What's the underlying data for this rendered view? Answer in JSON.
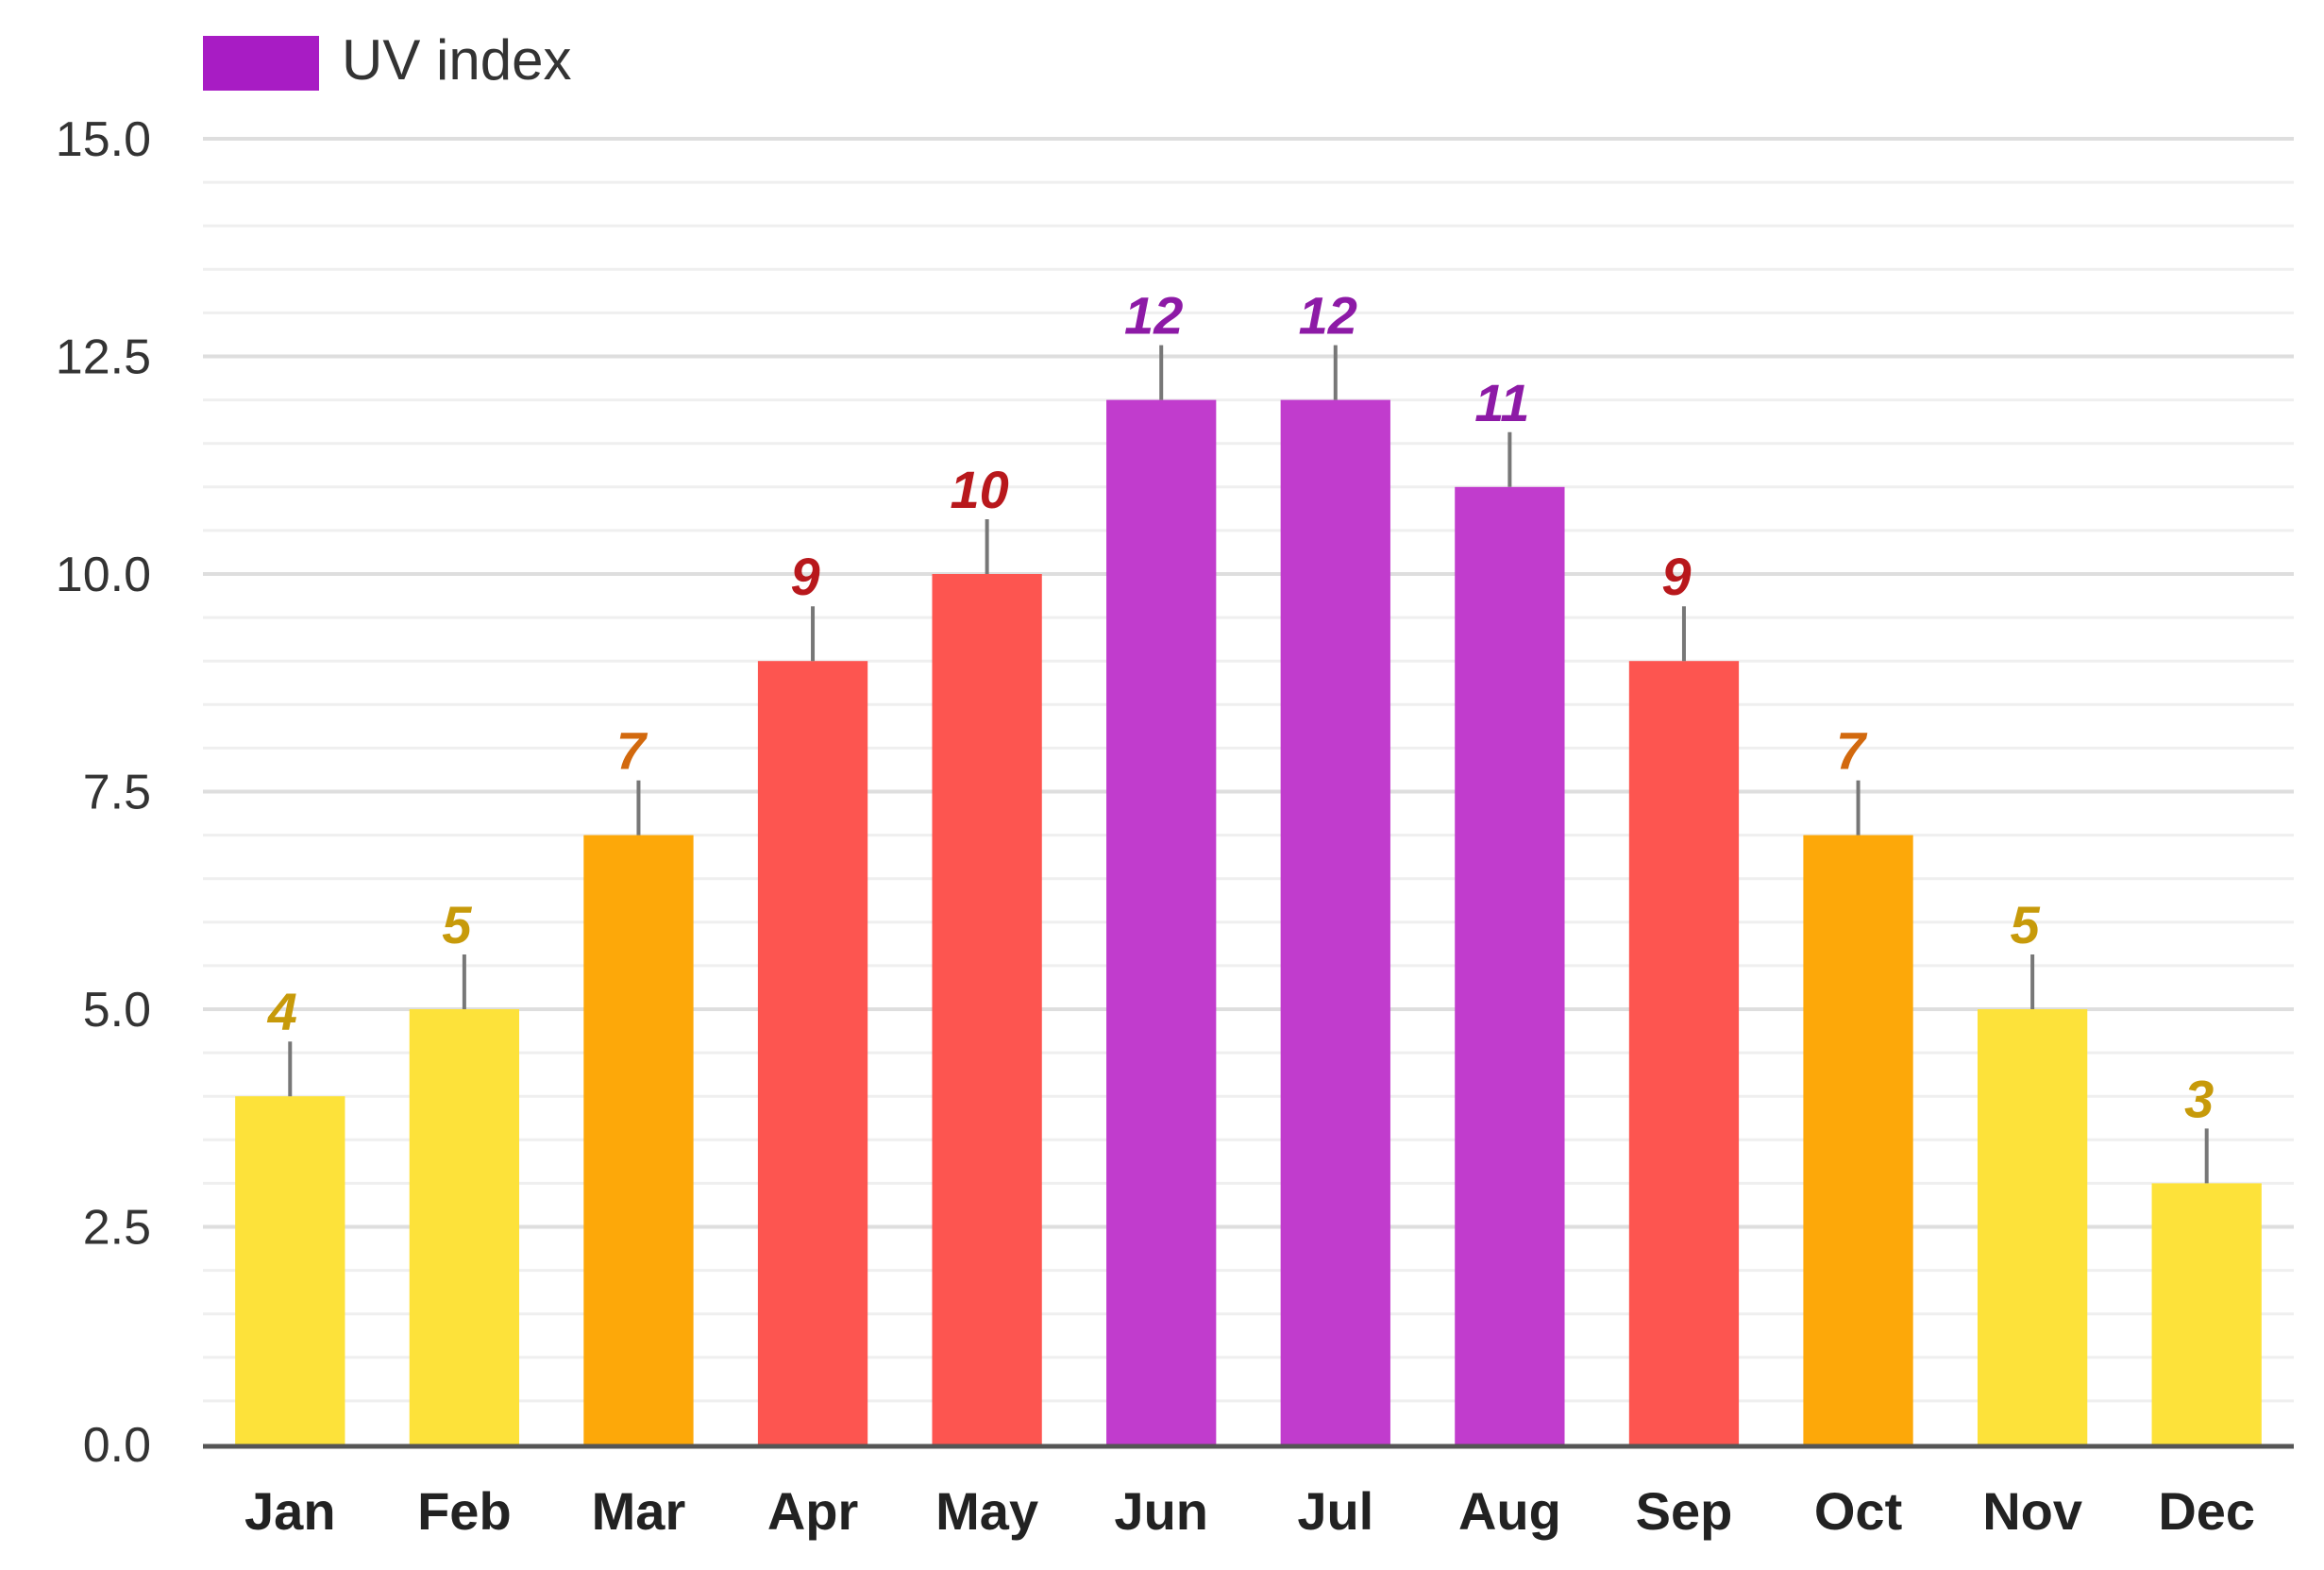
{
  "legend": {
    "label": "UV index",
    "color": "#a81cc4"
  },
  "colors": {
    "moderate": "#fde23a",
    "high": "#fda809",
    "very_high": "#fd5550",
    "extreme": "#c13ccd",
    "moderate_text": "#c79a0a",
    "high_text": "#d2690e",
    "very_high_text": "#b8181c",
    "extreme_text": "#8d1aa6",
    "grid": "#e3e3e3",
    "axis": "#555555"
  },
  "chart_data": {
    "type": "bar",
    "categories": [
      "Jan",
      "Feb",
      "Mar",
      "Apr",
      "May",
      "Jun",
      "Jul",
      "Aug",
      "Sep",
      "Oct",
      "Nov",
      "Dec"
    ],
    "series": [
      {
        "name": "UV index",
        "values": [
          4,
          5,
          7,
          9,
          10,
          12,
          12,
          11,
          9,
          7,
          5,
          3
        ]
      }
    ],
    "value_labels": [
      "4",
      "5",
      "7",
      "9",
      "10",
      "12",
      "12",
      "11",
      "9",
      "7",
      "5",
      "3"
    ],
    "levels": [
      "moderate",
      "moderate",
      "high",
      "very_high",
      "very_high",
      "extreme",
      "extreme",
      "extreme",
      "very_high",
      "high",
      "moderate",
      "moderate"
    ],
    "ylim": [
      0,
      15
    ],
    "yticks": [
      "0.0",
      "2.5",
      "5.0",
      "7.5",
      "10.0",
      "12.5",
      "15.0"
    ],
    "ytick_values": [
      0,
      2.5,
      5,
      7.5,
      10,
      12.5,
      15
    ],
    "minor_grid_step": 0.5,
    "grid": true,
    "legend_position": "top-left"
  }
}
